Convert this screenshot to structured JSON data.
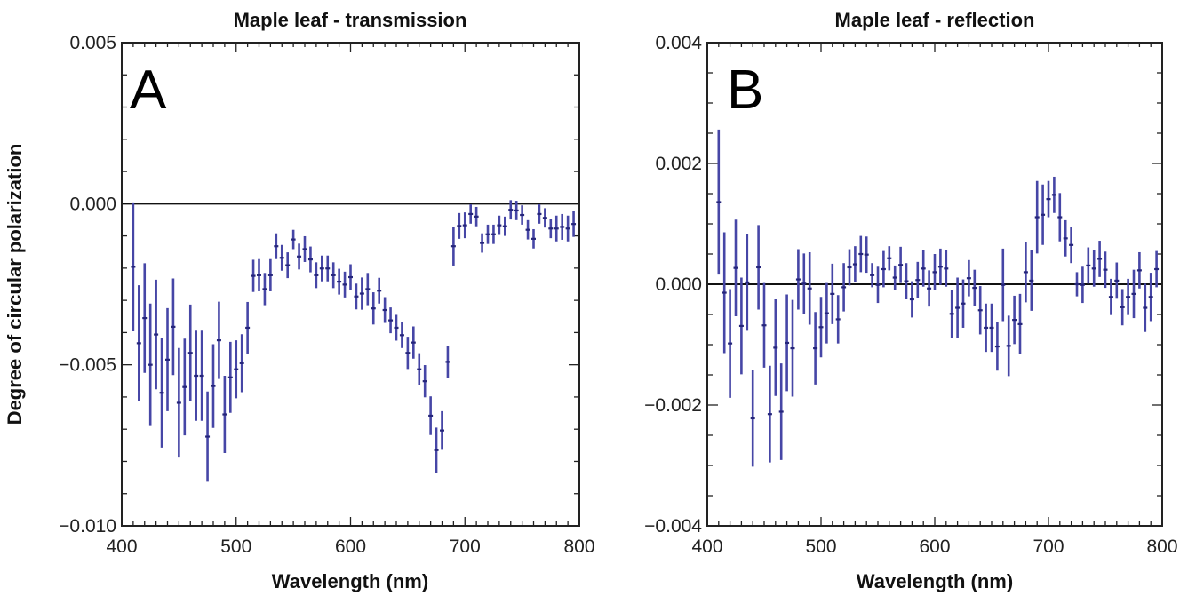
{
  "ylabel": "Degree of circular polarization",
  "chart_data": [
    {
      "type": "scatter",
      "title": "Maple leaf - transmission",
      "panel_label": "A",
      "xlabel": "Wavelength (nm)",
      "ylabel": "Degree of circular polarization",
      "xlim": [
        400,
        800
      ],
      "ylim": [
        -0.01,
        0.005
      ],
      "xticks": [
        "400",
        "500",
        "600",
        "700",
        "800"
      ],
      "yticks": [
        "0.005",
        "0.000",
        "−0.005",
        "−0.010"
      ],
      "ytick_values": [
        0.005,
        0.0,
        -0.005,
        -0.01
      ],
      "xtick_values": [
        400,
        500,
        600,
        700,
        800
      ],
      "reference_line": 0.0,
      "error_bars": true,
      "marker_color": "#25257a",
      "errorbar_color": "#4646a6",
      "x": [
        410,
        415,
        420,
        425,
        430,
        435,
        440,
        445,
        450,
        455,
        460,
        465,
        470,
        475,
        480,
        485,
        490,
        495,
        500,
        505,
        510,
        515,
        520,
        525,
        530,
        535,
        540,
        545,
        550,
        555,
        560,
        565,
        570,
        575,
        580,
        585,
        590,
        595,
        600,
        605,
        610,
        615,
        620,
        625,
        630,
        635,
        640,
        645,
        650,
        655,
        660,
        665,
        670,
        675,
        680,
        685,
        690,
        695,
        700,
        705,
        710,
        715,
        720,
        725,
        730,
        735,
        740,
        745,
        750,
        755,
        760,
        765,
        770,
        775,
        780,
        785,
        790,
        795
      ],
      "y": [
        -0.00196,
        -0.00433,
        -0.00355,
        -0.005,
        -0.00406,
        -0.00587,
        -0.00484,
        -0.00382,
        -0.00618,
        -0.00569,
        -0.00463,
        -0.00534,
        -0.00534,
        -0.00723,
        -0.00566,
        -0.00424,
        -0.00654,
        -0.00539,
        -0.00514,
        -0.00495,
        -0.00385,
        -0.00224,
        -0.00222,
        -0.00265,
        -0.00222,
        -0.00132,
        -0.00168,
        -0.00191,
        -0.00111,
        -0.00164,
        -0.00141,
        -0.00173,
        -0.00222,
        -0.00201,
        -0.00201,
        -0.00222,
        -0.00242,
        -0.00251,
        -0.00228,
        -0.00288,
        -0.00279,
        -0.00265,
        -0.00325,
        -0.0027,
        -0.0033,
        -0.00362,
        -0.00385,
        -0.00408,
        -0.00463,
        -0.00431,
        -0.00514,
        -0.00551,
        -0.00658,
        -0.00765,
        -0.00704,
        -0.00491,
        -0.00132,
        -0.00069,
        -0.00067,
        -0.00032,
        -0.0004,
        -0.00122,
        -0.00095,
        -0.00095,
        -0.00067,
        -0.0007,
        -0.00019,
        -0.00021,
        -0.00035,
        -0.00081,
        -0.00109,
        -0.00032,
        -0.00044,
        -0.00077,
        -0.00077,
        -0.00072,
        -0.00077,
        -0.00063
      ],
      "err": [
        0.002,
        0.0018,
        0.0017,
        0.0019,
        0.0017,
        0.0017,
        0.0016,
        0.0015,
        0.0017,
        0.0015,
        0.0015,
        0.0014,
        0.0014,
        0.0014,
        0.0013,
        0.0012,
        0.0012,
        0.0011,
        0.0009,
        0.0009,
        0.0008,
        0.0005,
        0.0005,
        0.0005,
        0.0005,
        0.0004,
        0.0004,
        0.0004,
        0.0003,
        0.0004,
        0.0004,
        0.0004,
        0.0004,
        0.0004,
        0.0004,
        0.0004,
        0.0004,
        0.0004,
        0.0004,
        0.0004,
        0.0005,
        0.0005,
        0.0005,
        0.0004,
        0.0004,
        0.0004,
        0.0004,
        0.0004,
        0.0005,
        0.0005,
        0.0005,
        0.0005,
        0.0006,
        0.0007,
        0.0006,
        0.0005,
        0.0006,
        0.0004,
        0.0004,
        0.0003,
        0.0003,
        0.0003,
        0.0003,
        0.0003,
        0.0003,
        0.0003,
        0.0003,
        0.0003,
        0.0003,
        0.0003,
        0.0003,
        0.0003,
        0.0003,
        0.0003,
        0.0004,
        0.0004,
        0.0004,
        0.0004
      ]
    },
    {
      "type": "scatter",
      "title": "Maple leaf - reflection",
      "panel_label": "B",
      "xlabel": "Wavelength (nm)",
      "xlim": [
        400,
        800
      ],
      "ylim": [
        -0.004,
        0.004
      ],
      "xticks": [
        "400",
        "500",
        "600",
        "700",
        "800"
      ],
      "yticks": [
        "0.004",
        "0.002",
        "0.000",
        "−0.002",
        "−0.004"
      ],
      "ytick_values": [
        0.004,
        0.002,
        0.0,
        -0.002,
        -0.004
      ],
      "xtick_values": [
        400,
        500,
        600,
        700,
        800
      ],
      "reference_line": 0.0,
      "error_bars": true,
      "marker_color": "#25257a",
      "errorbar_color": "#4646a6",
      "x": [
        410,
        415,
        420,
        425,
        430,
        435,
        440,
        445,
        450,
        455,
        460,
        465,
        470,
        475,
        480,
        485,
        490,
        495,
        500,
        505,
        510,
        515,
        520,
        525,
        530,
        535,
        540,
        545,
        550,
        555,
        560,
        565,
        570,
        575,
        580,
        585,
        590,
        595,
        600,
        605,
        610,
        615,
        620,
        625,
        630,
        635,
        640,
        645,
        650,
        655,
        660,
        665,
        670,
        675,
        680,
        685,
        690,
        695,
        700,
        705,
        710,
        715,
        720,
        725,
        730,
        735,
        740,
        745,
        750,
        755,
        760,
        765,
        770,
        775,
        780,
        785,
        790,
        795
      ],
      "y": [
        0.00136,
        -0.00014,
        -0.00098,
        0.00027,
        -0.00069,
        3e-05,
        -0.00222,
        0.00028,
        -0.00068,
        -0.00215,
        -0.00105,
        -0.00211,
        -0.00097,
        -0.00106,
        8e-05,
        1e-05,
        -7e-05,
        -0.00106,
        -0.00071,
        -0.00048,
        -0.00016,
        -0.00058,
        -5e-05,
        0.00028,
        0.00033,
        0.0005,
        0.00049,
        0.00015,
        -1e-05,
        0.00025,
        0.00043,
        0.00011,
        0.00032,
        5e-05,
        -0.00025,
        7e-05,
        0.00026,
        -7e-05,
        0.0002,
        0.00029,
        0.00026,
        -0.00049,
        -0.00039,
        -0.00032,
        0.0001,
        -6e-05,
        -0.00043,
        -0.00072,
        -0.00072,
        -0.00103,
        -1e-05,
        -0.00102,
        -0.00059,
        -0.00066,
        0.0002,
        6e-05,
        0.00111,
        0.00115,
        0.00141,
        0.00148,
        0.00111,
        0.00076,
        0.00065,
        0.0,
        -1e-05,
        0.00031,
        0.00026,
        0.00042,
        0.00024,
        -0.00021,
        6e-05,
        -0.00038,
        -0.00021,
        -0.00016,
        0.00023,
        -0.00039,
        -0.00021,
        0.00025
      ],
      "err": [
        0.0012,
        0.001,
        0.0009,
        0.0008,
        0.0008,
        0.0008,
        0.0008,
        0.0007,
        0.0007,
        0.0008,
        0.0008,
        0.0008,
        0.0008,
        0.0008,
        0.0005,
        0.0005,
        0.0006,
        0.0006,
        0.0005,
        0.0005,
        0.0005,
        0.0004,
        0.0004,
        0.0003,
        0.0003,
        0.0003,
        0.0003,
        0.0002,
        0.0003,
        0.0003,
        0.0002,
        0.0002,
        0.0003,
        0.0003,
        0.0003,
        0.0003,
        0.0003,
        0.0003,
        0.0003,
        0.0003,
        0.0003,
        0.0004,
        0.0005,
        0.0004,
        0.0003,
        0.0003,
        0.0004,
        0.0004,
        0.0004,
        0.0004,
        0.0006,
        0.0005,
        0.0004,
        0.0005,
        0.0005,
        0.0005,
        0.0006,
        0.0005,
        0.0003,
        0.0003,
        0.0004,
        0.0003,
        0.0003,
        0.0002,
        0.0003,
        0.0003,
        0.0003,
        0.0003,
        0.0003,
        0.0003,
        0.0003,
        0.0003,
        0.0003,
        0.0004,
        0.0003,
        0.0004,
        0.0004,
        0.0003
      ]
    }
  ]
}
